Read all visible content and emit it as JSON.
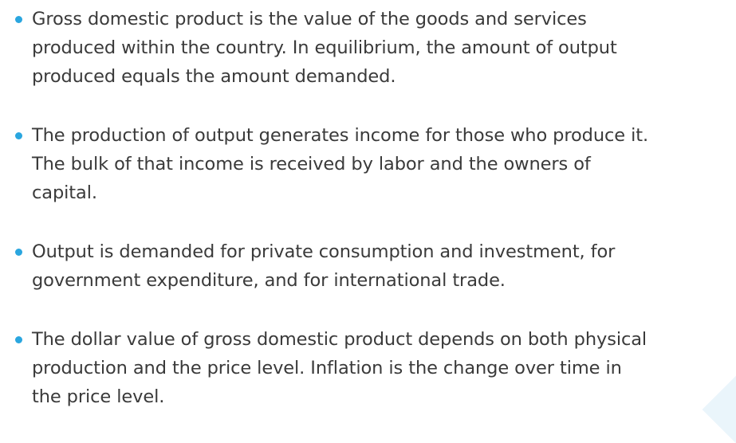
{
  "bullets": [
    {
      "lines": [
        "Gross domestic product is the value of the goods and services",
        "produced within the country. In equilibrium, the amount of output",
        "produced equals the amount demanded."
      ]
    },
    {
      "lines": [
        "The production of output generates income for those who produce it.",
        "The bulk of that income is received by labor and the owners of",
        "capital."
      ]
    },
    {
      "lines": [
        "Output is demanded for private consumption and investment, for",
        "government expenditure, and for international trade."
      ]
    },
    {
      "lines": [
        "The dollar value of gross domestic product depends on both physical",
        "production and the price level. Inflation is the change over time in",
        "the price level."
      ]
    }
  ]
}
